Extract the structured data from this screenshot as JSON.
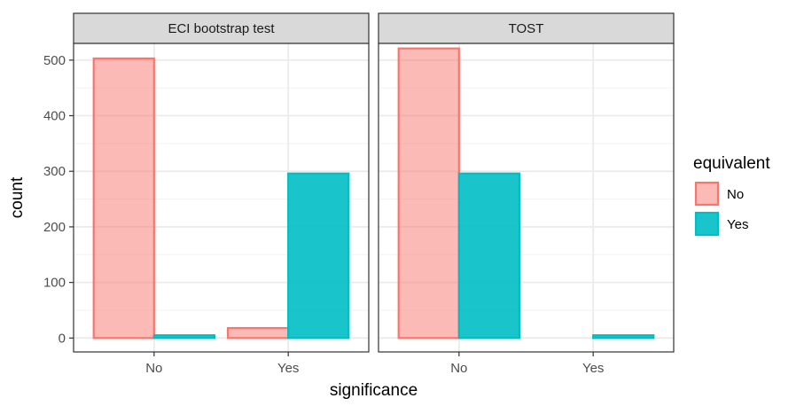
{
  "chart_data": {
    "type": "bar",
    "xlabel": "significance",
    "ylabel": "count",
    "ylim": [
      0,
      530
    ],
    "yticks": [
      0,
      100,
      200,
      300,
      400,
      500
    ],
    "categories": [
      "No",
      "Yes"
    ],
    "grid": true,
    "legend": {
      "title": "equivalent",
      "placement": "right",
      "entries": [
        {
          "label": "No",
          "fill": "#F8766D",
          "fill_alpha": 0.5,
          "stroke": "#F8766D"
        },
        {
          "label": "Yes",
          "fill": "#00BFC4",
          "fill_alpha": 0.9,
          "stroke": "#00BFC4"
        }
      ]
    },
    "panels": [
      {
        "title": "ECI bootstrap test",
        "series": [
          {
            "name": "No",
            "values": [
              503,
              18
            ]
          },
          {
            "name": "Yes",
            "values": [
              5,
              296
            ]
          }
        ]
      },
      {
        "title": "TOST",
        "series": [
          {
            "name": "No",
            "values": [
              521,
              0
            ]
          },
          {
            "name": "Yes",
            "values": [
              296,
              5
            ]
          }
        ]
      }
    ]
  }
}
